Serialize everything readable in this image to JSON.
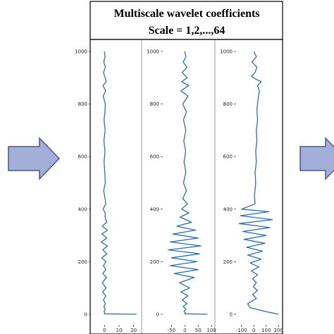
{
  "title": {
    "line1": "Multiscale wavelet coefficients",
    "line2": "Scale = 1,2,...,64"
  },
  "colors": {
    "series": "#2d6fa8",
    "arrow_fill": "#a3aed9",
    "arrow_stroke": "#4a5a86",
    "frame": "#000000",
    "panel_divider": "#999999"
  },
  "chart_data": [
    {
      "type": "line",
      "orientation": "vertical",
      "ylim": [
        0,
        1000
      ],
      "xlim": [
        -5,
        25
      ],
      "y_ticks": [
        "1000",
        "800",
        "600",
        "400",
        "200",
        "0"
      ],
      "x_ticks": [
        "0",
        "10",
        "20"
      ],
      "series": [
        {
          "x": [
            0,
            0.3,
            -0.5,
            0.6,
            -0.7,
            0.4,
            1.2,
            -1.1,
            0.8,
            -0.9,
            0.5,
            0.3,
            -0.3,
            0.4,
            -0.4,
            0.3,
            -0.3,
            0.2,
            0.5,
            -0.6,
            0.4,
            0.9,
            -1.0,
            0.5,
            0.3,
            1.5,
            -1.6,
            2.0,
            -1.8,
            1.6,
            -2.2,
            2.0,
            -1.2,
            1.7,
            -1.9,
            1.0,
            -0.8,
            0.9,
            -1.2,
            1.4,
            -1.5,
            1.1,
            -1.3,
            0.9,
            -0.7,
            0.6,
            -0.5,
            0.4,
            -0.3,
            0.2,
            0,
            22
          ],
          "y": [
            1000,
            980,
            960,
            940,
            920,
            900,
            885,
            870,
            850,
            830,
            800,
            770,
            740,
            700,
            660,
            620,
            580,
            540,
            500,
            470,
            440,
            420,
            400,
            385,
            370,
            350,
            335,
            320,
            305,
            290,
            275,
            260,
            245,
            230,
            215,
            200,
            185,
            170,
            155,
            140,
            120,
            100,
            85,
            70,
            55,
            40,
            30,
            20,
            10,
            5,
            2,
            0
          ]
        }
      ]
    },
    {
      "type": "line",
      "orientation": "vertical",
      "ylim": [
        0,
        1000
      ],
      "xlim": [
        -80,
        110
      ],
      "y_ticks": [
        "1000",
        "800",
        "600",
        "400",
        "200",
        "0"
      ],
      "x_ticks": [
        "-50",
        "0",
        "50",
        "100"
      ],
      "series": [
        {
          "x": [
            0,
            4,
            -6,
            8,
            -10,
            9,
            -12,
            14,
            -15,
            12,
            -8,
            6,
            -5,
            4,
            -4,
            3,
            -3,
            4,
            -5,
            6,
            -8,
            10,
            -12,
            15,
            -18,
            25,
            -30,
            40,
            -45,
            50,
            -55,
            60,
            -62,
            55,
            -50,
            45,
            -55,
            50,
            -40,
            35,
            -20,
            18,
            -15,
            12,
            -10,
            8,
            -6,
            4,
            -3,
            2,
            0,
            85
          ],
          "y": [
            1000,
            980,
            960,
            940,
            920,
            900,
            885,
            870,
            850,
            830,
            800,
            770,
            740,
            700,
            660,
            620,
            580,
            540,
            500,
            470,
            440,
            420,
            400,
            385,
            370,
            350,
            335,
            320,
            305,
            290,
            275,
            260,
            245,
            230,
            215,
            200,
            185,
            170,
            155,
            140,
            120,
            100,
            85,
            70,
            55,
            40,
            30,
            20,
            10,
            5,
            2,
            0
          ]
        }
      ]
    },
    {
      "type": "line",
      "orientation": "vertical",
      "ylim": [
        0,
        1000
      ],
      "xlim": [
        -150,
        250
      ],
      "y_ticks": [
        "1000",
        "800",
        "600",
        "400",
        "200",
        "0"
      ],
      "x_ticks": [
        "-100",
        "0",
        "100",
        "200"
      ],
      "series": [
        {
          "x": [
            0,
            20,
            -15,
            25,
            10,
            -20,
            15,
            60,
            30,
            45,
            35,
            25,
            30,
            20,
            25,
            15,
            20,
            10,
            15,
            5,
            10,
            -100,
            120,
            -110,
            150,
            -120,
            130,
            -90,
            100,
            -80,
            90,
            -60,
            70,
            -50,
            60,
            -30,
            40,
            -20,
            30,
            -10,
            20,
            -5,
            30,
            -10,
            20,
            -50,
            -30,
            100,
            200
          ],
          "y": [
            1000,
            980,
            960,
            940,
            920,
            905,
            895,
            885,
            870,
            850,
            820,
            780,
            740,
            700,
            660,
            620,
            580,
            540,
            500,
            450,
            420,
            400,
            390,
            375,
            360,
            345,
            330,
            315,
            300,
            285,
            270,
            255,
            240,
            225,
            210,
            195,
            180,
            165,
            150,
            135,
            120,
            105,
            90,
            75,
            60,
            40,
            25,
            10,
            0
          ]
        }
      ]
    }
  ]
}
